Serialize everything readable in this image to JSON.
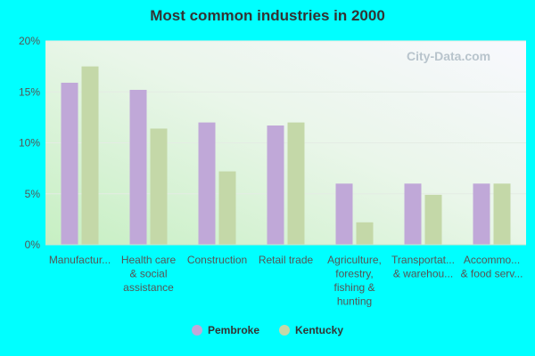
{
  "chart_data": {
    "type": "bar",
    "title": "Most common industries in 2000",
    "watermark": "City-Data.com",
    "categories": [
      [
        "Manufactur..."
      ],
      [
        "Health care",
        "& social",
        "assistance"
      ],
      [
        "Construction"
      ],
      [
        "Retail trade"
      ],
      [
        "Agriculture,",
        "forestry,",
        "fishing &",
        "hunting"
      ],
      [
        "Transportat...",
        "& warehou..."
      ],
      [
        "Accommo...",
        "& food serv..."
      ]
    ],
    "series": [
      {
        "name": "Pembroke",
        "color": "#c0a8d8",
        "values": [
          15.9,
          15.2,
          12.0,
          11.7,
          6.0,
          6.0,
          6.0
        ]
      },
      {
        "name": "Kentucky",
        "color": "#c4d8a8",
        "values": [
          17.5,
          11.4,
          7.2,
          12.0,
          2.2,
          4.9,
          6.0
        ]
      }
    ],
    "ylim": [
      0,
      20
    ],
    "yticks": [
      "0%",
      "5%",
      "10%",
      "15%",
      "20%"
    ],
    "legend_position": "bottom"
  }
}
